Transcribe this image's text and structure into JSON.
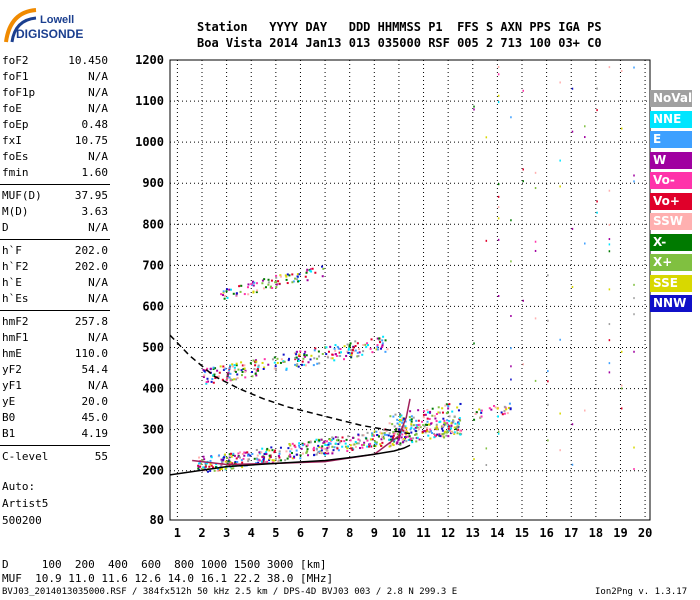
{
  "logo": {
    "line1": "Lowell",
    "line2": "DIGISONDE",
    "color": "#1b3f8f"
  },
  "header": {
    "line1": "Station   YYYY DAY   DDD HHMMSS P1  FFS S AXN PPS IGA PS",
    "line2": "Boa Vista 2014 Jan13 013 035000 RSF 005 2 713 100 03+ C0"
  },
  "params": [
    {
      "name": "foF2",
      "value": "10.450"
    },
    {
      "name": "foF1",
      "value": "N/A"
    },
    {
      "name": "foF1p",
      "value": "N/A"
    },
    {
      "name": "foE",
      "value": "N/A"
    },
    {
      "name": "foEp",
      "value": "0.48"
    },
    {
      "name": "fxI",
      "value": "10.75"
    },
    {
      "name": "foEs",
      "value": "N/A"
    },
    {
      "name": "fmin",
      "value": "1.60"
    },
    {
      "name": "MUF(D)",
      "value": "37.95"
    },
    {
      "name": "M(D)",
      "value": "3.63"
    },
    {
      "name": "D",
      "value": "N/A"
    },
    {
      "name": "h`F",
      "value": "202.0"
    },
    {
      "name": "h`F2",
      "value": "202.0"
    },
    {
      "name": "h`E",
      "value": "N/A"
    },
    {
      "name": "h`Es",
      "value": "N/A"
    },
    {
      "name": "hmF2",
      "value": "257.8"
    },
    {
      "name": "hmF1",
      "value": "N/A"
    },
    {
      "name": "hmE",
      "value": "110.0"
    },
    {
      "name": "yF2",
      "value": "54.4"
    },
    {
      "name": "yF1",
      "value": "N/A"
    },
    {
      "name": "yE",
      "value": "20.0"
    },
    {
      "name": "B0",
      "value": "45.0"
    },
    {
      "name": "B1",
      "value": "4.19"
    },
    {
      "name": "C-level",
      "value": "55"
    }
  ],
  "auto": {
    "line1": "Auto:",
    "line2": "Artist5",
    "line3": "500200"
  },
  "legend": [
    {
      "label": "NoVal",
      "color": "#a0a0a0"
    },
    {
      "label": "NNE",
      "color": "#00e5ff"
    },
    {
      "label": "E",
      "color": "#3ea0ff"
    },
    {
      "label": "W",
      "color": "#a000a0"
    },
    {
      "label": "Vo-",
      "color": "#ff33aa"
    },
    {
      "label": "Vo+",
      "color": "#e0002a"
    },
    {
      "label": "SSW",
      "color": "#ffb0b0"
    },
    {
      "label": "X-",
      "color": "#007a00"
    },
    {
      "label": "X+",
      "color": "#80c040"
    },
    {
      "label": "SSE",
      "color": "#d8d800"
    },
    {
      "label": "NNW",
      "color": "#1010c8"
    }
  ],
  "bottom": {
    "d_line": "D     100  200  400  600  800 1000 1500 3000 [km]",
    "muf_line": "MUF  10.9 11.0 11.6 12.6 14.0 16.1 22.2 38.0 [MHz]"
  },
  "footer": {
    "left": "BVJ03_2014013035000.RSF / 384fx512h 50 kHz 2.5 km / DPS-4D BVJ03 003 / 2.8 N 299.3 E",
    "right": "Ion2Png v. 1.3.17"
  },
  "chart_data": {
    "type": "scatter",
    "xlim": [
      0.7,
      20.2
    ],
    "ylim": [
      80,
      1200
    ],
    "x_ticks": [
      1,
      2,
      3,
      4,
      5,
      6,
      7,
      8,
      9,
      10,
      11,
      12,
      13,
      14,
      15,
      16,
      17,
      18,
      19,
      20
    ],
    "y_ticks": [
      80,
      200,
      300,
      400,
      500,
      600,
      700,
      800,
      900,
      1000,
      1100,
      1200
    ],
    "grid": true,
    "series": [
      {
        "name": "profile",
        "x": [
          1.6,
          3,
          5,
          7,
          9,
          10.0,
          10.3,
          10.45
        ],
        "y": [
          225,
          215,
          218,
          222,
          240,
          285,
          330,
          375
        ]
      },
      {
        "name": "lower-trace",
        "x": [
          0.7,
          3,
          5,
          7,
          8,
          9,
          9.8,
          10.2,
          10.45
        ],
        "y": [
          190,
          210,
          218,
          225,
          232,
          240,
          248,
          255,
          262
        ]
      },
      {
        "name": "dashed-curve",
        "x": [
          0.7,
          1.5,
          2.5,
          3.5,
          4.5,
          5.5,
          6.5,
          7.5,
          8.5,
          9.5,
          10.45
        ],
        "y": [
          530,
          480,
          430,
          400,
          375,
          355,
          340,
          325,
          310,
          300,
          290
        ]
      }
    ]
  }
}
